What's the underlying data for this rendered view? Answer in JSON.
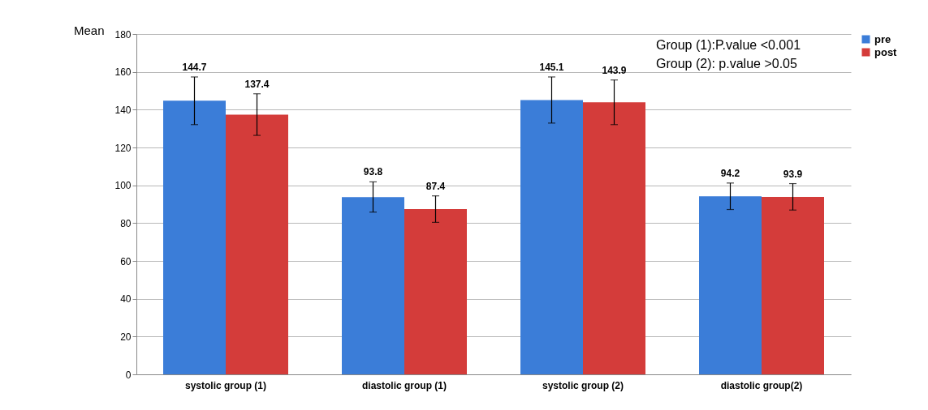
{
  "chart_data": {
    "type": "bar",
    "ylabel": "Mean",
    "categories": [
      "systolic group (1)",
      "diastolic group (1)",
      "systolic group (2)",
      "diastolic group(2)"
    ],
    "series": [
      {
        "name": "pre",
        "color": "#3b7dd8",
        "values": [
          144.7,
          93.8,
          145.1,
          94.2
        ],
        "errors": [
          12.6,
          8,
          12.2,
          7
        ]
      },
      {
        "name": "post",
        "color": "#d43c3a",
        "values": [
          137.4,
          87.4,
          143.9,
          93.9
        ],
        "errors": [
          11,
          7,
          11.8,
          7
        ]
      }
    ],
    "ylim": [
      0,
      180
    ],
    "yticks": [
      0,
      20,
      40,
      60,
      80,
      100,
      120,
      140,
      160,
      180
    ],
    "grid": "y",
    "legend": "right",
    "data_labels": true,
    "annotations": [
      "Group (1):P.value <0.001",
      "Group (2): p.value >0.05"
    ]
  }
}
